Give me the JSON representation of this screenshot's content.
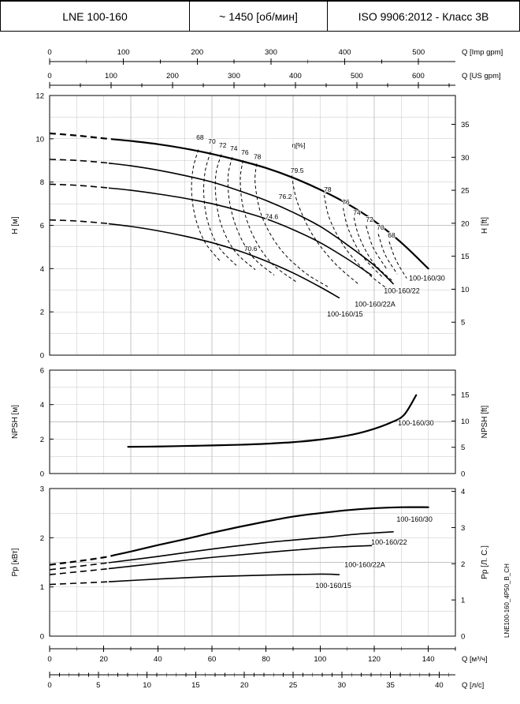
{
  "header": {
    "model": "LNE 100-160",
    "speed": "~ 1450 [об/мин]",
    "standard": "ISO 9906:2012 - Класс 3В"
  },
  "side_label": "LNE100-160_4P50_B_CH",
  "colors": {
    "curve": "#000000",
    "grid": "#c4c4c4",
    "frame": "#000000",
    "background": "#ffffff"
  },
  "x_axes": {
    "imp_gpm": {
      "title": "Q [Imp gpm]",
      "ticks": [
        0,
        100,
        200,
        300,
        400,
        500
      ],
      "minor_step": 50,
      "m3h_per_unit": 0.27276
    },
    "us_gpm": {
      "title": "Q [US gpm]",
      "ticks": [
        0,
        100,
        200,
        300,
        400,
        500,
        600
      ],
      "minor_step": 50,
      "m3h_per_unit": 0.22712
    },
    "m3h": {
      "title": "Q [м³/ч]",
      "ticks": [
        0,
        20,
        40,
        60,
        80,
        100,
        120,
        140
      ],
      "minor_step": 10,
      "m3h_per_unit": 1
    },
    "ls": {
      "title": "Q [л/с]",
      "ticks": [
        0,
        5,
        10,
        15,
        20,
        25,
        30,
        35,
        40
      ],
      "minor_step": 1,
      "m3h_per_unit": 3.6
    }
  },
  "chart_data": [
    {
      "type": "line",
      "id": "head",
      "title": "H-Q pump curves",
      "xlabel": "Q [м³/ч]",
      "ylabel_left": "H [м]",
      "ylabel_right": "H [ft]",
      "xlim": [
        0,
        150
      ],
      "ylim": [
        0,
        12
      ],
      "yticks": [
        0,
        2,
        4,
        6,
        8,
        10,
        12
      ],
      "right_ticks": [
        5,
        10,
        15,
        20,
        25,
        30,
        35
      ],
      "right_factor": 0.3048,
      "grid_y_step": 1,
      "series": [
        {
          "name": "100-160/30",
          "dash_until": 25,
          "width": 2.2,
          "label_at": [
            139.5,
            3.45
          ],
          "points": [
            [
              0,
              10.25
            ],
            [
              10,
              10.15
            ],
            [
              20,
              10.02
            ],
            [
              30,
              9.9
            ],
            [
              40,
              9.75
            ],
            [
              50,
              9.55
            ],
            [
              60,
              9.3
            ],
            [
              70,
              9.0
            ],
            [
              80,
              8.65
            ],
            [
              90,
              8.2
            ],
            [
              100,
              7.65
            ],
            [
              110,
              7.0
            ],
            [
              120,
              6.2
            ],
            [
              130,
              5.2
            ],
            [
              140,
              4.0
            ]
          ]
        },
        {
          "name": "100-160/22",
          "dash_until": 22,
          "width": 1.6,
          "label_at": [
            130.2,
            2.87
          ],
          "points": [
            [
              0,
              9.05
            ],
            [
              10,
              9.0
            ],
            [
              20,
              8.9
            ],
            [
              30,
              8.75
            ],
            [
              40,
              8.55
            ],
            [
              50,
              8.3
            ],
            [
              60,
              8.0
            ],
            [
              70,
              7.6
            ],
            [
              80,
              7.15
            ],
            [
              90,
              6.6
            ],
            [
              100,
              5.95
            ],
            [
              110,
              5.1
            ],
            [
              120,
              4.15
            ],
            [
              127,
              3.3
            ]
          ]
        },
        {
          "name": "100-160/22A",
          "dash_until": 22,
          "width": 1.6,
          "label_at": [
            120.3,
            2.25
          ],
          "points": [
            [
              0,
              7.9
            ],
            [
              10,
              7.85
            ],
            [
              20,
              7.75
            ],
            [
              30,
              7.62
            ],
            [
              40,
              7.45
            ],
            [
              50,
              7.25
            ],
            [
              60,
              7.0
            ],
            [
              70,
              6.68
            ],
            [
              80,
              6.3
            ],
            [
              90,
              5.8
            ],
            [
              100,
              5.2
            ],
            [
              110,
              4.45
            ],
            [
              119,
              3.7
            ]
          ]
        },
        {
          "name": "100-160/15",
          "dash_until": 22,
          "width": 1.6,
          "label_at": [
            109.2,
            1.78
          ],
          "points": [
            [
              0,
              6.25
            ],
            [
              10,
              6.2
            ],
            [
              20,
              6.1
            ],
            [
              30,
              5.95
            ],
            [
              40,
              5.75
            ],
            [
              50,
              5.5
            ],
            [
              60,
              5.2
            ],
            [
              70,
              4.82
            ],
            [
              80,
              4.35
            ],
            [
              90,
              3.8
            ],
            [
              100,
              3.15
            ],
            [
              107,
              2.65
            ]
          ]
        }
      ],
      "contours": [
        {
          "value": 68,
          "points": [
            [
              55,
              9.5
            ],
            [
              53,
              8.6
            ],
            [
              52.5,
              7.5
            ],
            [
              54,
              6.3
            ],
            [
              57.5,
              5.2
            ],
            [
              63,
              4.35
            ]
          ]
        },
        {
          "value": 70,
          "points": [
            [
              59.5,
              9.4
            ],
            [
              57.5,
              8.5
            ],
            [
              57,
              7.4
            ],
            [
              58.5,
              6.15
            ],
            [
              62.5,
              5.0
            ],
            [
              69,
              4.15
            ]
          ]
        },
        {
          "value": 72,
          "points": [
            [
              63.5,
              9.28
            ],
            [
              61.5,
              8.4
            ],
            [
              61.5,
              7.25
            ],
            [
              63.5,
              6.0
            ],
            [
              68.5,
              4.8
            ],
            [
              76,
              3.95
            ]
          ]
        },
        {
          "value": 74,
          "points": [
            [
              67.5,
              9.15
            ],
            [
              66,
              8.3
            ],
            [
              66.5,
              7.1
            ],
            [
              69.5,
              5.75
            ],
            [
              75,
              4.55
            ],
            [
              83,
              3.7
            ]
          ]
        },
        {
          "value": 76,
          "points": [
            [
              71.5,
              9.0
            ],
            [
              70.5,
              8.15
            ],
            [
              71.5,
              6.85
            ],
            [
              75.5,
              5.45
            ],
            [
              82,
              4.25
            ],
            [
              91,
              3.4
            ]
          ]
        },
        {
          "value": 78,
          "points": [
            [
              76.5,
              8.85
            ],
            [
              76,
              7.9
            ],
            [
              78.5,
              6.4
            ],
            [
              85,
              4.95
            ],
            [
              94,
              3.85
            ],
            [
              103,
              3.15
            ]
          ]
        },
        {
          "value": 79.5,
          "points": [
            [
              89.5,
              8.3
            ],
            [
              91.5,
              7.1
            ],
            [
              97,
              5.6
            ],
            [
              105,
              4.3
            ],
            [
              114,
              3.3
            ]
          ]
        },
        {
          "value": 78,
          "points": [
            [
              101.5,
              7.4
            ],
            [
              103.5,
              6.3
            ],
            [
              109,
              5.0
            ],
            [
              117,
              3.85
            ],
            [
              125,
              3.05
            ]
          ]
        },
        {
          "value": 76,
          "points": [
            [
              108.5,
              6.8
            ],
            [
              110.5,
              5.8
            ],
            [
              115.5,
              4.6
            ],
            [
              123.5,
              3.55
            ]
          ]
        },
        {
          "value": 74,
          "points": [
            [
              112.5,
              6.35
            ],
            [
              114.5,
              5.45
            ],
            [
              119.5,
              4.3
            ],
            [
              127,
              3.4
            ]
          ]
        },
        {
          "value": 72,
          "points": [
            [
              117,
              5.98
            ],
            [
              119.5,
              5.0
            ],
            [
              124.5,
              4.0
            ]
          ]
        },
        {
          "value": 70,
          "points": [
            [
              121.5,
              5.6
            ],
            [
              124,
              4.65
            ],
            [
              128.5,
              3.75
            ]
          ]
        },
        {
          "value": 68,
          "points": [
            [
              125.5,
              5.25
            ],
            [
              128,
              4.4
            ],
            [
              132,
              3.55
            ]
          ]
        }
      ],
      "eta_labels": [
        {
          "text": "68",
          "at": [
            55.6,
            9.95
          ]
        },
        {
          "text": "70",
          "at": [
            60,
            9.78
          ]
        },
        {
          "text": "72",
          "at": [
            64,
            9.6
          ]
        },
        {
          "text": "74",
          "at": [
            68.1,
            9.44
          ]
        },
        {
          "text": "76",
          "at": [
            72.2,
            9.26
          ]
        },
        {
          "text": "78",
          "at": [
            76.8,
            9.07
          ]
        },
        {
          "text": "η[%]",
          "at": [
            92,
            9.6
          ]
        },
        {
          "text": "79.5",
          "at": [
            91.5,
            8.42
          ]
        },
        {
          "text": "78",
          "at": [
            102.8,
            7.55
          ]
        },
        {
          "text": "76",
          "at": [
            109.5,
            6.97
          ]
        },
        {
          "text": "74",
          "at": [
            113.6,
            6.47
          ]
        },
        {
          "text": "72",
          "at": [
            118.3,
            6.17
          ]
        },
        {
          "text": "70",
          "at": [
            122.3,
            5.8
          ]
        },
        {
          "text": "68",
          "at": [
            126.4,
            5.44
          ]
        },
        {
          "text": "76.2",
          "at": [
            87.1,
            7.22
          ]
        },
        {
          "text": "74.6",
          "at": [
            82.1,
            6.3
          ]
        },
        {
          "text": "70.6",
          "at": [
            74.3,
            4.82
          ]
        }
      ]
    },
    {
      "type": "line",
      "id": "npsh",
      "title": "NPSH curve",
      "xlabel": "Q [м³/ч]",
      "ylabel_left": "NPSH [м]",
      "ylabel_right": "NPSH [ft]",
      "xlim": [
        0,
        150
      ],
      "ylim": [
        0,
        6
      ],
      "yticks": [
        0,
        2,
        4,
        6
      ],
      "right_ticks": [
        0,
        5,
        10,
        15
      ],
      "right_factor": 0.3048,
      "grid_y_step": 1,
      "series": [
        {
          "name": "100-160/30",
          "dash_until": 0,
          "width": 2.2,
          "label_at": [
            135.4,
            2.8
          ],
          "points": [
            [
              29,
              1.55
            ],
            [
              40,
              1.57
            ],
            [
              50,
              1.6
            ],
            [
              60,
              1.63
            ],
            [
              70,
              1.67
            ],
            [
              80,
              1.73
            ],
            [
              90,
              1.82
            ],
            [
              100,
              1.97
            ],
            [
              110,
              2.2
            ],
            [
              118,
              2.5
            ],
            [
              126,
              2.95
            ],
            [
              131,
              3.4
            ],
            [
              135.5,
              4.55
            ]
          ]
        }
      ],
      "contours": [],
      "eta_labels": []
    },
    {
      "type": "line",
      "id": "power",
      "title": "Power curves",
      "xlabel": "Q [м³/ч]",
      "ylabel_left": "Pp [кВт]",
      "ylabel_right": "Pp [Л. С.]",
      "xlim": [
        0,
        150
      ],
      "ylim": [
        0,
        3
      ],
      "yticks": [
        0,
        1,
        2,
        3
      ],
      "right_ticks": [
        0,
        1,
        2,
        3,
        4
      ],
      "right_factor": 0.7355,
      "grid_y_step": 0.5,
      "series": [
        {
          "name": "100-160/30",
          "dash_until": 25,
          "width": 2.2,
          "label_at": [
            134.9,
            2.33
          ],
          "points": [
            [
              0,
              1.45
            ],
            [
              10,
              1.52
            ],
            [
              20,
              1.6
            ],
            [
              30,
              1.72
            ],
            [
              40,
              1.85
            ],
            [
              50,
              1.97
            ],
            [
              60,
              2.1
            ],
            [
              70,
              2.22
            ],
            [
              80,
              2.33
            ],
            [
              90,
              2.43
            ],
            [
              100,
              2.5
            ],
            [
              110,
              2.56
            ],
            [
              120,
              2.6
            ],
            [
              130,
              2.62
            ],
            [
              140,
              2.62
            ]
          ]
        },
        {
          "name": "100-160/22",
          "dash_until": 22,
          "width": 1.6,
          "label_at": [
            125.5,
            1.86
          ],
          "points": [
            [
              0,
              1.35
            ],
            [
              20,
              1.48
            ],
            [
              40,
              1.62
            ],
            [
              60,
              1.77
            ],
            [
              80,
              1.9
            ],
            [
              100,
              2.0
            ],
            [
              115,
              2.08
            ],
            [
              127,
              2.12
            ]
          ]
        },
        {
          "name": "100-160/22A",
          "dash_until": 22,
          "width": 1.6,
          "label_at": [
            116.5,
            1.4
          ],
          "points": [
            [
              0,
              1.25
            ],
            [
              20,
              1.36
            ],
            [
              40,
              1.48
            ],
            [
              60,
              1.6
            ],
            [
              80,
              1.7
            ],
            [
              100,
              1.79
            ],
            [
              110,
              1.82
            ],
            [
              119,
              1.84
            ]
          ]
        },
        {
          "name": "100-160/15",
          "dash_until": 22,
          "width": 1.6,
          "label_at": [
            104.9,
            0.98
          ],
          "points": [
            [
              0,
              1.05
            ],
            [
              20,
              1.1
            ],
            [
              40,
              1.16
            ],
            [
              60,
              1.21
            ],
            [
              80,
              1.24
            ],
            [
              100,
              1.26
            ],
            [
              107,
              1.25
            ]
          ]
        }
      ],
      "contours": [],
      "eta_labels": []
    }
  ]
}
